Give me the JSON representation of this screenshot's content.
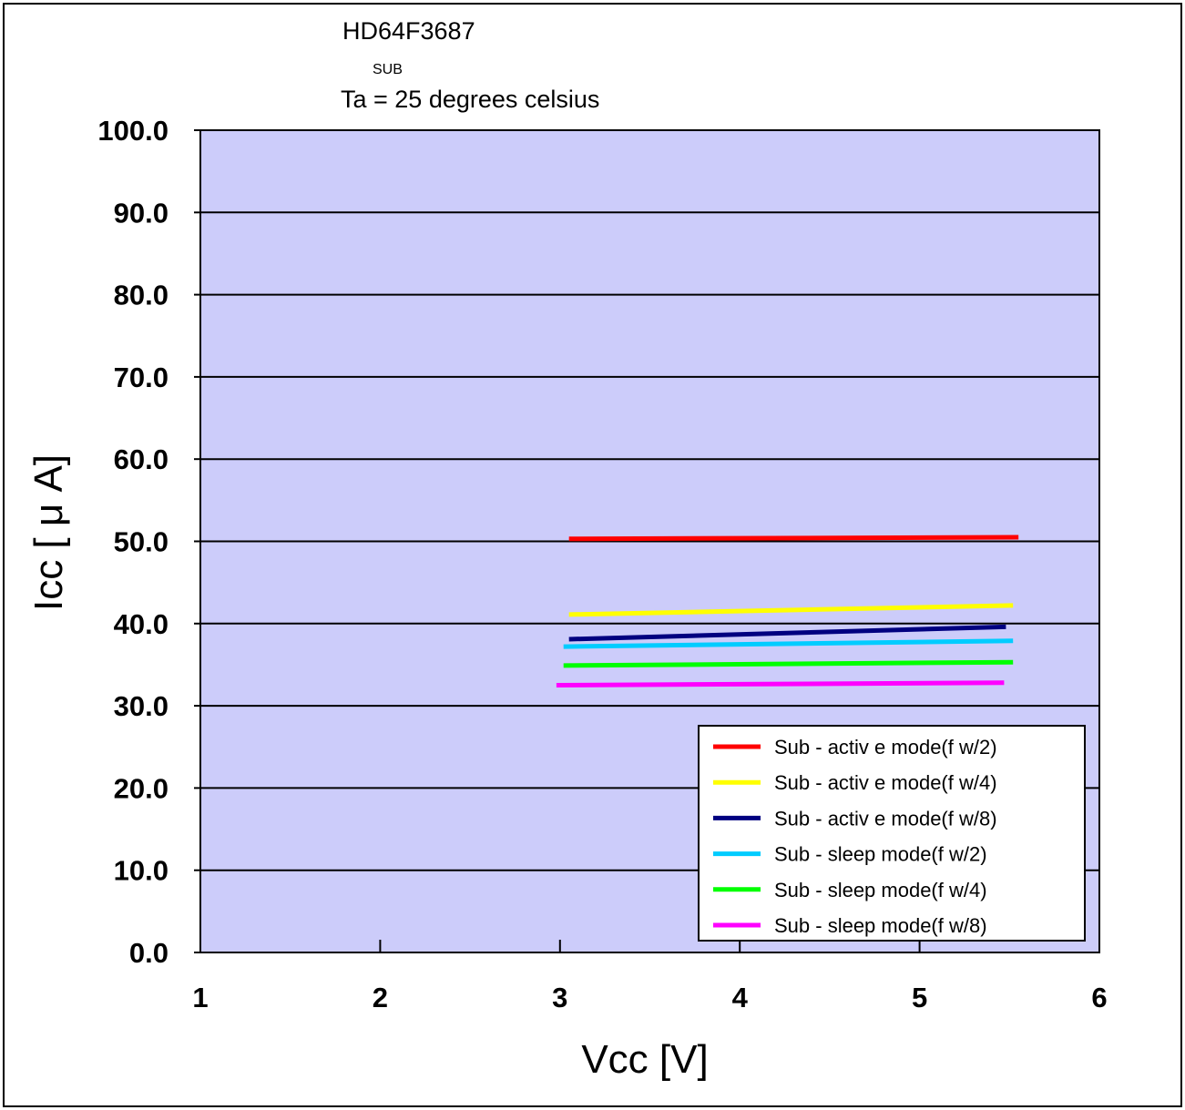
{
  "header": {
    "title": "HD64F3687",
    "subscript": "SUB",
    "condition": "Ta = 25 degrees celsius"
  },
  "colors": {
    "plot_background": "#ccccfa",
    "grid": "#000000",
    "frame": "#000000"
  },
  "chart_data": {
    "type": "line",
    "xlabel": "Vcc [V]",
    "ylabel": "Icc [ μ A]",
    "xlim": [
      1,
      6
    ],
    "ylim": [
      0,
      100
    ],
    "x_ticks": [
      "1",
      "2",
      "3",
      "4",
      "5",
      "6"
    ],
    "y_ticks": [
      "0.0",
      "10.0",
      "20.0",
      "30.0",
      "40.0",
      "50.0",
      "60.0",
      "70.0",
      "80.0",
      "90.0",
      "100.0"
    ],
    "grid": "horizontal",
    "legend_position": "bottom-right",
    "series": [
      {
        "name": "Sub - activ e mode(f w/2)",
        "color": "#ff0000",
        "x": [
          3.05,
          5.55
        ],
        "y": [
          50.3,
          50.5
        ]
      },
      {
        "name": "Sub - activ e mode(f w/4)",
        "color": "#ffff00",
        "x": [
          3.05,
          5.52
        ],
        "y": [
          41.1,
          42.2
        ]
      },
      {
        "name": "Sub - activ e mode(f w/8)",
        "color": "#000080",
        "x": [
          3.05,
          5.48
        ],
        "y": [
          38.1,
          39.6
        ]
      },
      {
        "name": "Sub - sleep mode(f w/2)",
        "color": "#00ccff",
        "x": [
          3.02,
          5.52
        ],
        "y": [
          37.2,
          37.9
        ]
      },
      {
        "name": "Sub - sleep  mode(f w/4)",
        "color": "#00ff00",
        "x": [
          3.02,
          5.52
        ],
        "y": [
          34.9,
          35.3
        ]
      },
      {
        "name": "Sub - sleep mode(f w/8)",
        "color": "#ff00ff",
        "x": [
          2.98,
          5.47
        ],
        "y": [
          32.5,
          32.8
        ]
      }
    ]
  }
}
